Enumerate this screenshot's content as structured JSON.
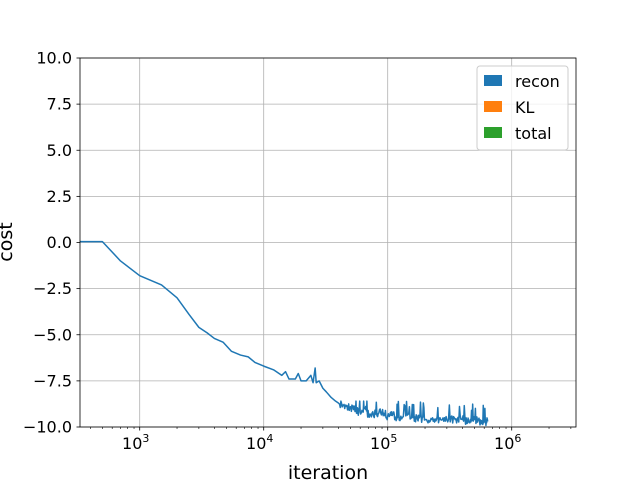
{
  "chart_data": {
    "type": "line",
    "xlabel": "iteration",
    "ylabel": "cost",
    "xscale": "log",
    "xlim": [
      330,
      3300000
    ],
    "ylim": [
      -10,
      10
    ],
    "grid": true,
    "legend_position": "top-right",
    "x_ticks": [
      {
        "value": 1000,
        "base": "10",
        "exp": "3"
      },
      {
        "value": 10000,
        "base": "10",
        "exp": "4"
      },
      {
        "value": 100000,
        "base": "10",
        "exp": "5"
      },
      {
        "value": 1000000,
        "base": "10",
        "exp": "6"
      }
    ],
    "y_ticks": [
      {
        "value": 10,
        "label": "10.0"
      },
      {
        "value": 7.5,
        "label": "7.5"
      },
      {
        "value": 5,
        "label": "5.0"
      },
      {
        "value": 2.5,
        "label": "2.5"
      },
      {
        "value": 0,
        "label": "0.0"
      },
      {
        "value": -2.5,
        "label": "−2.5"
      },
      {
        "value": -5,
        "label": "−5.0"
      },
      {
        "value": -7.5,
        "label": "−7.5"
      },
      {
        "value": -10,
        "label": "−10.0"
      }
    ],
    "series": [
      {
        "name": "recon",
        "color": "#1f77b4",
        "points": [
          [
            330,
            0.05
          ],
          [
            500,
            0.05
          ],
          [
            700,
            -1.0
          ],
          [
            1000,
            -1.8
          ],
          [
            1500,
            -2.3
          ],
          [
            2000,
            -3.0
          ],
          [
            2500,
            -3.9
          ],
          [
            3000,
            -4.6
          ],
          [
            3500,
            -4.9
          ],
          [
            4000,
            -5.2
          ],
          [
            4700,
            -5.4
          ],
          [
            5500,
            -5.9
          ],
          [
            6500,
            -6.1
          ],
          [
            7500,
            -6.2
          ],
          [
            8500,
            -6.5
          ],
          [
            10000,
            -6.7
          ],
          [
            12000,
            -6.9
          ],
          [
            14000,
            -7.2
          ],
          [
            15000,
            -7.0
          ],
          [
            16000,
            -7.4
          ],
          [
            18000,
            -7.4
          ],
          [
            19000,
            -7.1
          ],
          [
            20000,
            -7.5
          ],
          [
            22000,
            -7.5
          ],
          [
            24000,
            -7.2
          ],
          [
            25000,
            -7.6
          ],
          [
            26000,
            -6.8
          ],
          [
            26500,
            -7.6
          ],
          [
            28000,
            -7.5
          ],
          [
            30000,
            -7.9
          ],
          [
            32000,
            -8.1
          ],
          [
            35000,
            -8.4
          ],
          [
            38000,
            -8.6
          ],
          [
            40000,
            -8.7
          ],
          [
            45000,
            -9.0
          ],
          [
            50000,
            -8.9
          ],
          [
            55000,
            -9.1
          ],
          [
            60000,
            -9.2
          ],
          [
            65000,
            -9.0
          ],
          [
            70000,
            -9.3
          ],
          [
            80000,
            -9.3
          ],
          [
            90000,
            -9.2
          ],
          [
            100000,
            -9.4
          ],
          [
            110000,
            -9.3
          ],
          [
            120000,
            -9.5
          ],
          [
            140000,
            -9.4
          ],
          [
            160000,
            -9.5
          ],
          [
            180000,
            -9.5
          ],
          [
            200000,
            -9.6
          ],
          [
            230000,
            -9.5
          ],
          [
            260000,
            -9.6
          ],
          [
            300000,
            -9.6
          ],
          [
            350000,
            -9.6
          ],
          [
            400000,
            -9.6
          ],
          [
            450000,
            -9.7
          ],
          [
            500000,
            -9.6
          ],
          [
            550000,
            -9.7
          ],
          [
            600000,
            -9.7
          ],
          [
            640000,
            -9.7
          ]
        ],
        "noise": {
          "x_from": 40000,
          "x_to": 640000,
          "low": -10.0,
          "high": -8.6
        }
      },
      {
        "name": "KL",
        "color": "#ff7f0e",
        "points": []
      },
      {
        "name": "total",
        "color": "#2ca02c",
        "points": []
      }
    ]
  }
}
